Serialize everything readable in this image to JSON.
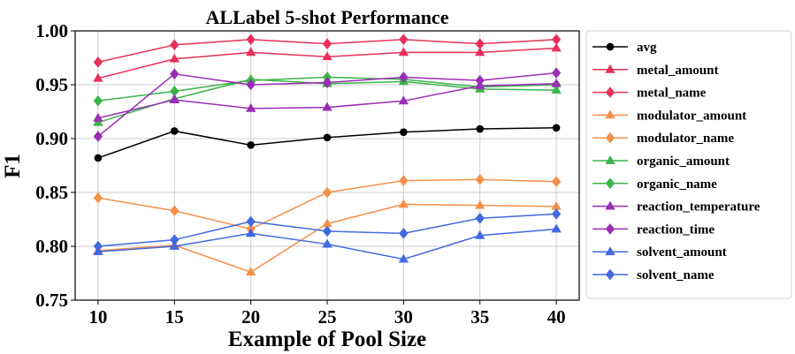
{
  "chart_data": {
    "type": "line",
    "title": "ALLabel 5-shot Performance",
    "xlabel": "Example of Pool Size",
    "ylabel": "F1",
    "x": [
      10,
      15,
      20,
      25,
      30,
      35,
      40
    ],
    "xticks": [
      "10",
      "15",
      "20",
      "25",
      "30",
      "35",
      "40"
    ],
    "yticks": [
      "0.75",
      "0.80",
      "0.85",
      "0.90",
      "0.95",
      "1.00"
    ],
    "xlim": [
      8.5,
      41.5
    ],
    "ylim": [
      0.75,
      1.0
    ],
    "grid": true,
    "legend_position": "right",
    "series": [
      {
        "name": "avg",
        "color": "#000000",
        "marker": "circle",
        "values": [
          0.882,
          0.907,
          0.894,
          0.901,
          0.906,
          0.909,
          0.91
        ]
      },
      {
        "name": "metal_amount",
        "color": "#e8305a",
        "marker": "triangle",
        "values": [
          0.956,
          0.974,
          0.98,
          0.976,
          0.98,
          0.98,
          0.984
        ]
      },
      {
        "name": "metal_name",
        "color": "#e8305a",
        "marker": "diamond",
        "values": [
          0.971,
          0.987,
          0.992,
          0.988,
          0.992,
          0.988,
          0.992
        ]
      },
      {
        "name": "modulator_amount",
        "color": "#f5904a",
        "marker": "triangle",
        "values": [
          0.796,
          0.801,
          0.776,
          0.821,
          0.839,
          0.838,
          0.837
        ]
      },
      {
        "name": "modulator_name",
        "color": "#f5904a",
        "marker": "diamond",
        "values": [
          0.845,
          0.833,
          0.816,
          0.85,
          0.861,
          0.862,
          0.86
        ]
      },
      {
        "name": "organic_amount",
        "color": "#3cb44b",
        "marker": "triangle",
        "values": [
          0.915,
          0.937,
          0.955,
          0.951,
          0.953,
          0.946,
          0.945
        ]
      },
      {
        "name": "organic_name",
        "color": "#3cb44b",
        "marker": "diamond",
        "values": [
          0.935,
          0.944,
          0.954,
          0.957,
          0.955,
          0.948,
          0.95
        ]
      },
      {
        "name": "reaction_temperature",
        "color": "#9a2db5",
        "marker": "triangle",
        "values": [
          0.919,
          0.936,
          0.928,
          0.929,
          0.935,
          0.949,
          0.951
        ]
      },
      {
        "name": "reaction_time",
        "color": "#9a2db5",
        "marker": "diamond",
        "values": [
          0.902,
          0.96,
          0.95,
          0.952,
          0.957,
          0.954,
          0.961
        ]
      },
      {
        "name": "solvent_amount",
        "color": "#4169e1",
        "marker": "triangle",
        "values": [
          0.795,
          0.8,
          0.812,
          0.802,
          0.788,
          0.81,
          0.816
        ]
      },
      {
        "name": "solvent_name",
        "color": "#4169e1",
        "marker": "diamond",
        "values": [
          0.8,
          0.806,
          0.823,
          0.814,
          0.812,
          0.826,
          0.83
        ]
      }
    ]
  }
}
